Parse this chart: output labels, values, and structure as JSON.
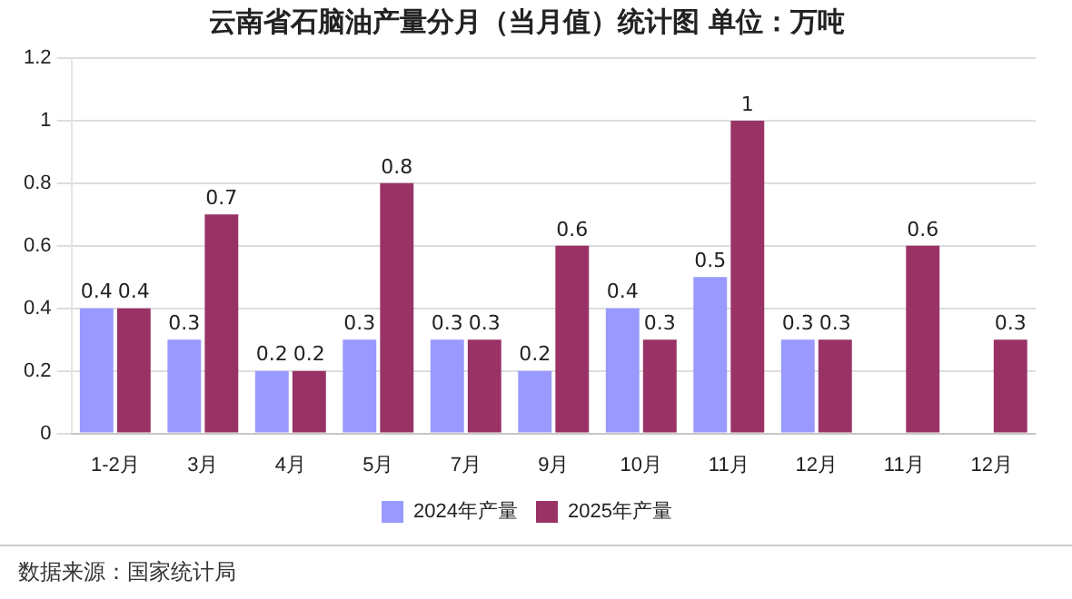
{
  "chart_data": {
    "type": "bar",
    "title": "云南省石脑油产量分月（当月值）统计图 单位：万吨",
    "categories": [
      "1-2月",
      "3月",
      "4月",
      "5月",
      "7月",
      "9月",
      "10月",
      "11月",
      "12月",
      "11月",
      "12月"
    ],
    "series": [
      {
        "name": "2024年产量",
        "color": "#9999ff",
        "values": [
          0.4,
          0.3,
          0.2,
          0.3,
          0.3,
          0.2,
          0.4,
          0.5,
          0.3,
          null,
          null
        ]
      },
      {
        "name": "2025年产量",
        "color": "#993366",
        "values": [
          0.4,
          0.7,
          0.2,
          0.8,
          0.3,
          0.6,
          0.3,
          1,
          0.3,
          0.6,
          0.3
        ]
      }
    ],
    "ylim": [
      0,
      1.2
    ],
    "yticks": [
      0,
      0.2,
      0.4,
      0.6,
      0.8,
      1,
      1.2
    ],
    "grid": "y",
    "legend": "bottom",
    "data_labels": true,
    "annotations": [
      "数据来源：国家统计局"
    ]
  }
}
